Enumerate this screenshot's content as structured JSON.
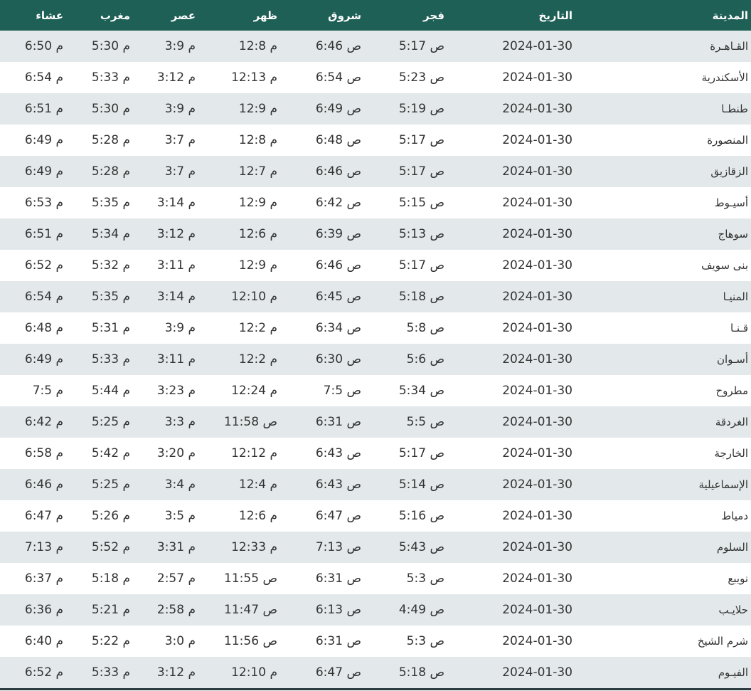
{
  "headers": [
    "المدينة",
    "التاريخ",
    "فجر",
    "شروق",
    "ظهر",
    "عصر",
    "مغرب",
    "عشاء"
  ],
  "colors": {
    "header_bg": "#1e5f56",
    "row_alt": "#e3e9eb"
  },
  "rows": [
    [
      "القـاهـرة",
      "2024-01-30",
      "5:17 ص",
      "6:46 ص",
      "12:8 م",
      "3:9 م",
      "5:30 م",
      "6:50 م"
    ],
    [
      "الأسكندرية",
      "2024-01-30",
      "5:23 ص",
      "6:54 ص",
      "12:13 م",
      "3:12 م",
      "5:33 م",
      "6:54 م"
    ],
    [
      "طنطـا",
      "2024-01-30",
      "5:19 ص",
      "6:49 ص",
      "12:9 م",
      "3:9 م",
      "5:30 م",
      "6:51 م"
    ],
    [
      "المنصورة",
      "2024-01-30",
      "5:17 ص",
      "6:48 ص",
      "12:8 م",
      "3:7 م",
      "5:28 م",
      "6:49 م"
    ],
    [
      "الزقازيق",
      "2024-01-30",
      "5:17 ص",
      "6:46 ص",
      "12:7 م",
      "3:7 م",
      "5:28 م",
      "6:49 م"
    ],
    [
      "أسيـوط",
      "2024-01-30",
      "5:15 ص",
      "6:42 ص",
      "12:9 م",
      "3:14 م",
      "5:35 م",
      "6:53 م"
    ],
    [
      "سوهاج",
      "2024-01-30",
      "5:13 ص",
      "6:39 ص",
      "12:6 م",
      "3:12 م",
      "5:34 م",
      "6:51 م"
    ],
    [
      "بنى سويف",
      "2024-01-30",
      "5:17 ص",
      "6:46 ص",
      "12:9 م",
      "3:11 م",
      "5:32 م",
      "6:52 م"
    ],
    [
      "المنيـا",
      "2024-01-30",
      "5:18 ص",
      "6:45 ص",
      "12:10 م",
      "3:14 م",
      "5:35 م",
      "6:54 م"
    ],
    [
      "قـنـا",
      "2024-01-30",
      "5:8 ص",
      "6:34 ص",
      "12:2 م",
      "3:9 م",
      "5:31 م",
      "6:48 م"
    ],
    [
      "أسـوان",
      "2024-01-30",
      "5:6 ص",
      "6:30 ص",
      "12:2 م",
      "3:11 م",
      "5:33 م",
      "6:49 م"
    ],
    [
      "مطروح",
      "2024-01-30",
      "5:34 ص",
      "7:5 ص",
      "12:24 م",
      "3:23 م",
      "5:44 م",
      "7:5 م"
    ],
    [
      "الغردقة",
      "2024-01-30",
      "5:5 ص",
      "6:31 ص",
      "11:58 ص",
      "3:3 م",
      "5:25 م",
      "6:42 م"
    ],
    [
      "الخارجة",
      "2024-01-30",
      "5:17 ص",
      "6:43 ص",
      "12:12 م",
      "3:20 م",
      "5:42 م",
      "6:58 م"
    ],
    [
      "الإسماعيلية",
      "2024-01-30",
      "5:14 ص",
      "6:43 ص",
      "12:4 م",
      "3:4 م",
      "5:25 م",
      "6:46 م"
    ],
    [
      "دمياط",
      "2024-01-30",
      "5:16 ص",
      "6:47 ص",
      "12:6 م",
      "3:5 م",
      "5:26 م",
      "6:47 م"
    ],
    [
      "السلوم",
      "2024-01-30",
      "5:43 ص",
      "7:13 ص",
      "12:33 م",
      "3:31 م",
      "5:52 م",
      "7:13 م"
    ],
    [
      "نويبع",
      "2024-01-30",
      "5:3 ص",
      "6:31 ص",
      "11:55 ص",
      "2:57 م",
      "5:18 م",
      "6:37 م"
    ],
    [
      "حلايـب",
      "2024-01-30",
      "4:49 ص",
      "6:13 ص",
      "11:47 ص",
      "2:58 م",
      "5:21 م",
      "6:36 م"
    ],
    [
      "شرم الشيخ",
      "2024-01-30",
      "5:3 ص",
      "6:31 ص",
      "11:56 ص",
      "3:0 م",
      "5:22 م",
      "6:40 م"
    ],
    [
      "الفيـوم",
      "2024-01-30",
      "5:18 ص",
      "6:47 ص",
      "12:10 م",
      "3:12 م",
      "5:33 م",
      "6:52 م"
    ]
  ]
}
